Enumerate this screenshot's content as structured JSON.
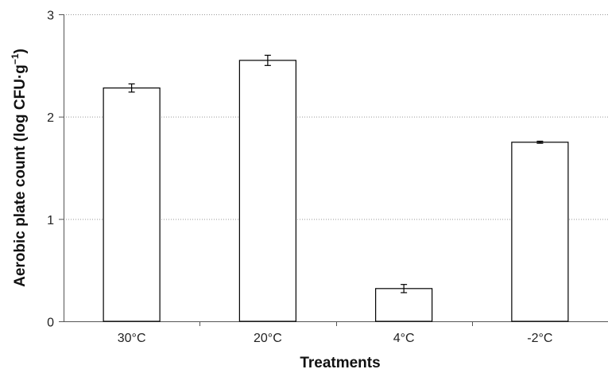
{
  "chart_data": {
    "type": "bar",
    "categories": [
      "30°C",
      "20°C",
      "4°C",
      "-2°C"
    ],
    "values": [
      2.28,
      2.55,
      0.32,
      1.75
    ],
    "errors": [
      0.04,
      0.05,
      0.04,
      0.01
    ],
    "xlabel": "Treatments",
    "ylabel": "Aerobic plate count (log CFU·g",
    "ylabel_sup": "−1",
    "ylabel_close": ")",
    "ylim": [
      0,
      3
    ],
    "yticks": [
      0,
      1,
      2,
      3
    ],
    "ytick_labels": [
      "0",
      "1",
      "2",
      "3"
    ],
    "grid": "horizontal dotted",
    "legend": "none",
    "colors": {
      "bar_fill": "#ffffff",
      "bar_stroke": "#000000",
      "grid": "#999999",
      "axis": "#555555"
    }
  }
}
